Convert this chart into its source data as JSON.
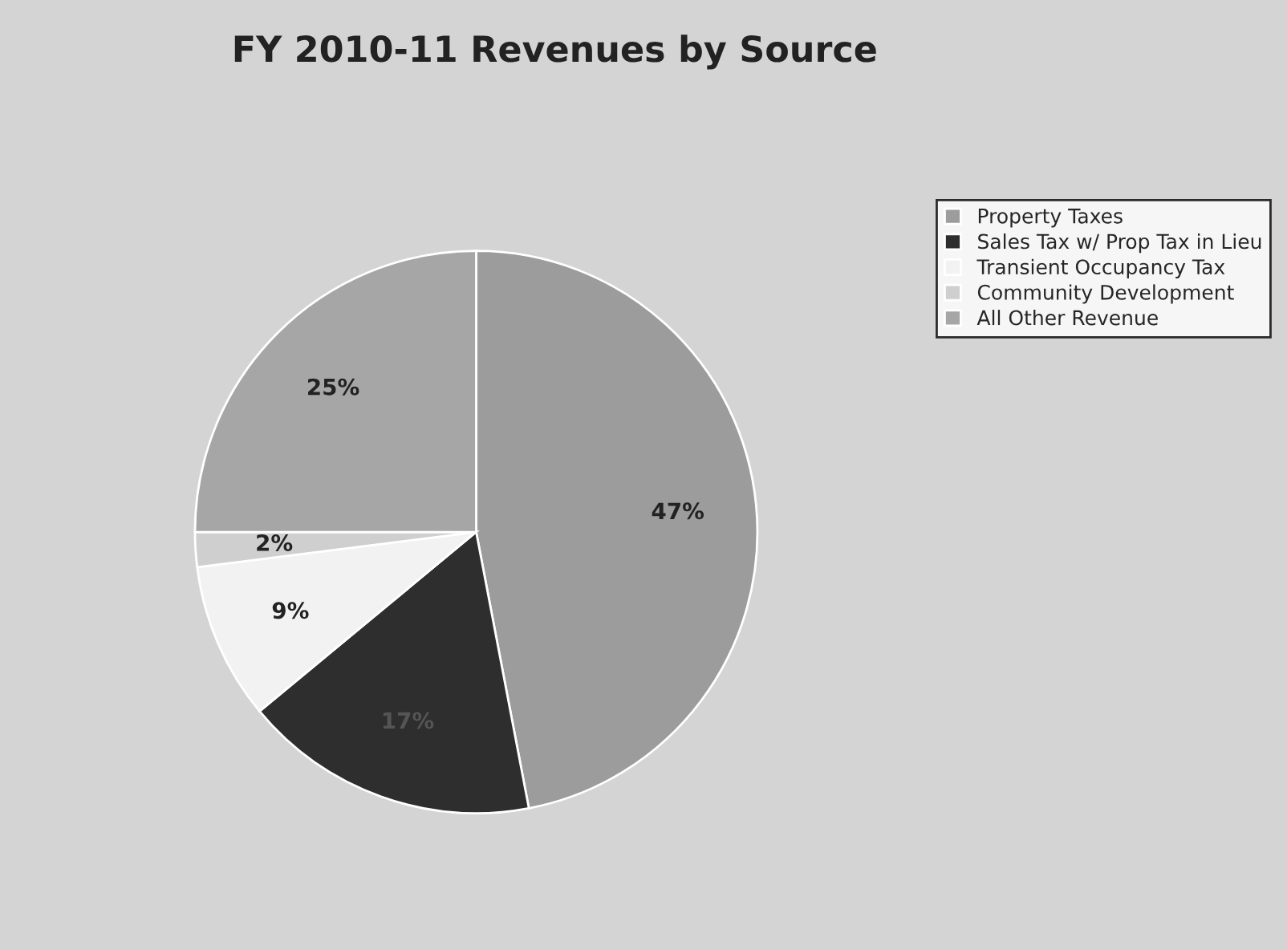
{
  "chart_data": {
    "type": "pie",
    "title": "FY 2010-11 Revenues by Source",
    "categories": [
      "Property Taxes",
      "Sales Tax w/ Prop Tax in Lieu",
      "Transient Occupancy Tax",
      "Community Development",
      "All Other Revenue"
    ],
    "values": [
      47,
      17,
      9,
      2,
      25
    ],
    "value_labels": [
      "47%",
      "17%",
      "9%",
      "2%",
      "25%"
    ],
    "colors": [
      "#9c9c9c",
      "#2e2e2e",
      "#f2f2f2",
      "#cfcfcf",
      "#a6a6a6"
    ],
    "legend": "top right"
  }
}
